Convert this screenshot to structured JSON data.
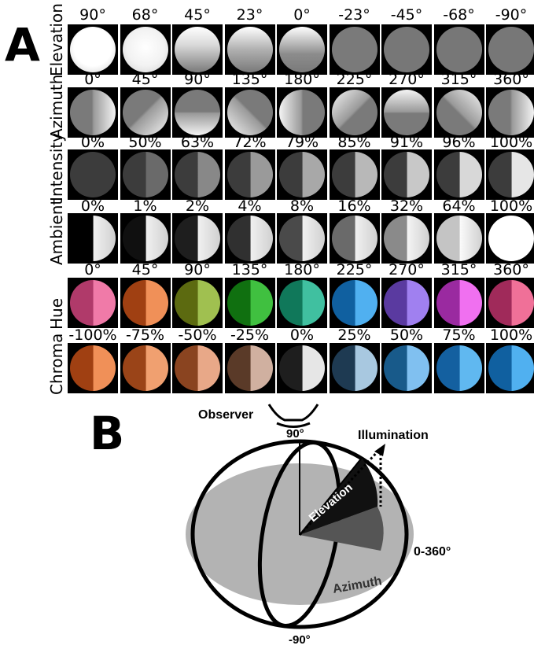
{
  "panel_a": {
    "letter": "A",
    "rows": [
      {
        "label": "Elevation",
        "ticks": [
          "90°",
          "68°",
          "45°",
          "23°",
          "0°",
          "-23°",
          "-45°",
          "-68°",
          "-90°"
        ]
      },
      {
        "label": "Azimuth",
        "ticks": [
          "0°",
          "45°",
          "90°",
          "135°",
          "180°",
          "225°",
          "270°",
          "315°",
          "360°"
        ]
      },
      {
        "label": "Intensity",
        "ticks": [
          "0%",
          "50%",
          "63%",
          "72%",
          "79%",
          "85%",
          "91%",
          "96%",
          "100%"
        ]
      },
      {
        "label": "Ambient",
        "ticks": [
          "0%",
          "1%",
          "2%",
          "4%",
          "8%",
          "16%",
          "32%",
          "64%",
          "100%"
        ]
      },
      {
        "label": "Hue",
        "ticks": [
          "0°",
          "45°",
          "90°",
          "135°",
          "180°",
          "225°",
          "270°",
          "315°",
          "360°"
        ]
      },
      {
        "label": "Chroma",
        "ticks": [
          "-100%",
          "-75%",
          "-50%",
          "-25%",
          "0%",
          "25%",
          "50%",
          "75%",
          "100%"
        ]
      }
    ],
    "tile_colors": {
      "elevation": [
        "#ffffff",
        "#f2f2f2",
        "#d9d9d9",
        "#b0b0b0",
        "#8c8c8c",
        "#7a7a7a",
        "#777777",
        "#777777",
        "#777777"
      ],
      "intensity_dark": [
        "#3c3c3c",
        "#3c3c3c",
        "#3c3c3c",
        "#3c3c3c",
        "#3c3c3c",
        "#3c3c3c",
        "#3c3c3c",
        "#3c3c3c",
        "#3c3c3c"
      ],
      "intensity_light": [
        "#3c3c3c",
        "#6a6a6a",
        "#888888",
        "#9a9a9a",
        "#a8a8a8",
        "#b8b8b8",
        "#c8c8c8",
        "#d8d8d8",
        "#e6e6e6"
      ],
      "ambient_dark": [
        "#000000",
        "#101010",
        "#1e1e1e",
        "#303030",
        "#4a4a4a",
        "#6a6a6a",
        "#8a8a8a",
        "#c4c4c4",
        "#ffffff"
      ],
      "ambient_light": [
        "#f0f0f0",
        "#f0f0f0",
        "#f0f0f0",
        "#f0f0f0",
        "#f0f0f0",
        "#f0f0f0",
        "#f4f4f4",
        "#fafafa",
        "#ffffff"
      ],
      "hue_dark": [
        "#b03a6a",
        "#a04012",
        "#5c6a10",
        "#107010",
        "#10785a",
        "#1060a0",
        "#5a3aa0",
        "#9a2aa0",
        "#a02a5a"
      ],
      "hue_light": [
        "#f07aa8",
        "#f09058",
        "#a0c050",
        "#40c040",
        "#40c0a0",
        "#50b0f0",
        "#a080f0",
        "#f070f0",
        "#f07098"
      ],
      "chroma_dark": [
        "#a04012",
        "#9a4418",
        "#8a4420",
        "#5a3a28",
        "#1e1e1e",
        "#1e3a52",
        "#185a8a",
        "#1460a0",
        "#1060a0"
      ],
      "chroma_light": [
        "#f09058",
        "#f0a070",
        "#e8a888",
        "#d0b0a0",
        "#e6e6e6",
        "#a8c8e0",
        "#80c0f0",
        "#60b8f0",
        "#50b0f0"
      ]
    }
  },
  "panel_b": {
    "letter": "B",
    "labels": {
      "observer": "Observer",
      "top": "90°",
      "illumination": "Illumination",
      "elevation": "Elevation",
      "right": "0-360°",
      "azimuth": "Azimuth",
      "bottom": "-90°"
    },
    "colors": {
      "plane": "#b3b3b3",
      "elevation_wedge": "#111111",
      "azimuth_wedge": "#555555"
    }
  }
}
